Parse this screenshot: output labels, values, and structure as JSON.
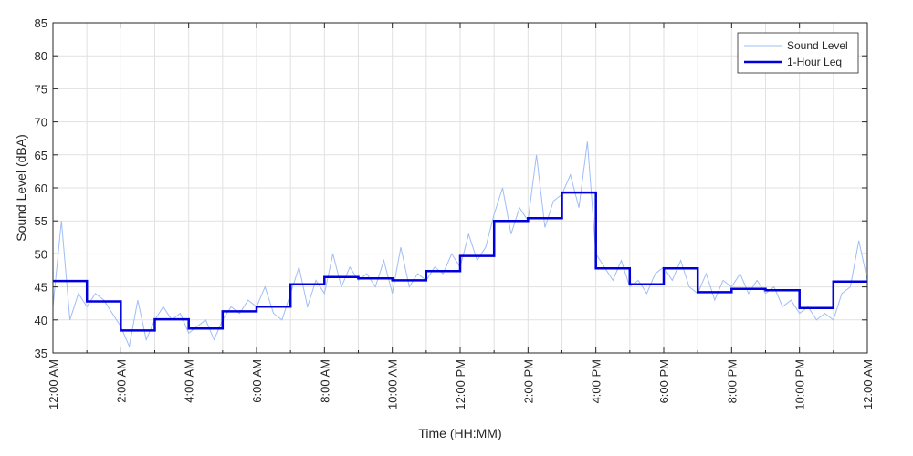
{
  "chart_data": {
    "type": "line",
    "xlabel": "Time (HH:MM)",
    "ylabel": "Sound Level (dBA)",
    "xlim": [
      0,
      24
    ],
    "ylim": [
      35,
      85
    ],
    "x_unit": "hours since 12:00 AM",
    "grid": true,
    "legend_position": "top-right",
    "x_tick_labels": [
      "12:00 AM",
      "2:00 AM",
      "4:00 AM",
      "6:00 AM",
      "8:00 AM",
      "10:00 AM",
      "12:00 PM",
      "2:00 PM",
      "4:00 PM",
      "6:00 PM",
      "8:00 PM",
      "10:00 PM",
      "12:00 AM"
    ],
    "y_ticks": [
      35,
      40,
      45,
      50,
      55,
      60,
      65,
      70,
      75,
      80,
      85
    ],
    "series": [
      {
        "name": "Sound Level",
        "color": "#9fbdf5",
        "style": "thin-line",
        "x": [
          0,
          0.25,
          0.5,
          0.75,
          1,
          1.25,
          1.5,
          1.75,
          2,
          2.25,
          2.5,
          2.75,
          3,
          3.25,
          3.5,
          3.75,
          4,
          4.25,
          4.5,
          4.75,
          5,
          5.25,
          5.5,
          5.75,
          6,
          6.25,
          6.5,
          6.75,
          7,
          7.25,
          7.5,
          7.75,
          8,
          8.25,
          8.5,
          8.75,
          9,
          9.25,
          9.5,
          9.75,
          10,
          10.25,
          10.5,
          10.75,
          11,
          11.25,
          11.5,
          11.75,
          12,
          12.25,
          12.5,
          12.75,
          13,
          13.25,
          13.5,
          13.75,
          14,
          14.25,
          14.5,
          14.75,
          15,
          15.25,
          15.5,
          15.75,
          16,
          16.25,
          16.5,
          16.75,
          17,
          17.25,
          17.5,
          17.75,
          18,
          18.25,
          18.5,
          18.75,
          19,
          19.25,
          19.5,
          19.75,
          20,
          20.25,
          20.5,
          20.75,
          21,
          21.25,
          21.5,
          21.75,
          22,
          22.25,
          22.5,
          22.75,
          23,
          23.25,
          23.5,
          23.75,
          24
        ],
        "y": [
          42,
          55,
          40,
          44,
          42,
          44,
          43,
          41,
          39,
          36,
          43,
          37,
          40,
          42,
          40,
          41,
          38,
          39,
          40,
          37,
          40,
          42,
          41,
          43,
          42,
          45,
          41,
          40,
          44,
          48,
          42,
          46,
          44,
          50,
          45,
          48,
          46,
          47,
          45,
          49,
          44,
          51,
          45,
          47,
          46,
          48,
          47,
          50,
          48,
          53,
          49,
          51,
          56,
          60,
          53,
          57,
          55,
          65,
          54,
          58,
          59,
          62,
          57,
          67,
          50,
          48,
          46,
          49,
          45,
          46,
          44,
          47,
          48,
          46,
          49,
          45,
          44,
          47,
          43,
          46,
          45,
          47,
          44,
          46,
          44,
          45,
          42,
          43,
          41,
          42,
          40,
          41,
          40,
          44,
          45,
          52,
          46
        ]
      },
      {
        "name": "1-Hour Leq",
        "color": "#0000dd",
        "style": "step",
        "hours": [
          0,
          1,
          2,
          3,
          4,
          5,
          6,
          7,
          8,
          9,
          10,
          11,
          12,
          13,
          14,
          15,
          16,
          17,
          18,
          19,
          20,
          21,
          22,
          23
        ],
        "values": [
          45.9,
          42.8,
          38.4,
          40.1,
          38.7,
          41.3,
          42.0,
          45.4,
          46.5,
          46.3,
          46.0,
          47.4,
          49.7,
          55.0,
          55.4,
          59.3,
          47.8,
          45.4,
          47.8,
          44.2,
          44.7,
          44.5,
          41.8,
          45.8
        ]
      }
    ]
  }
}
